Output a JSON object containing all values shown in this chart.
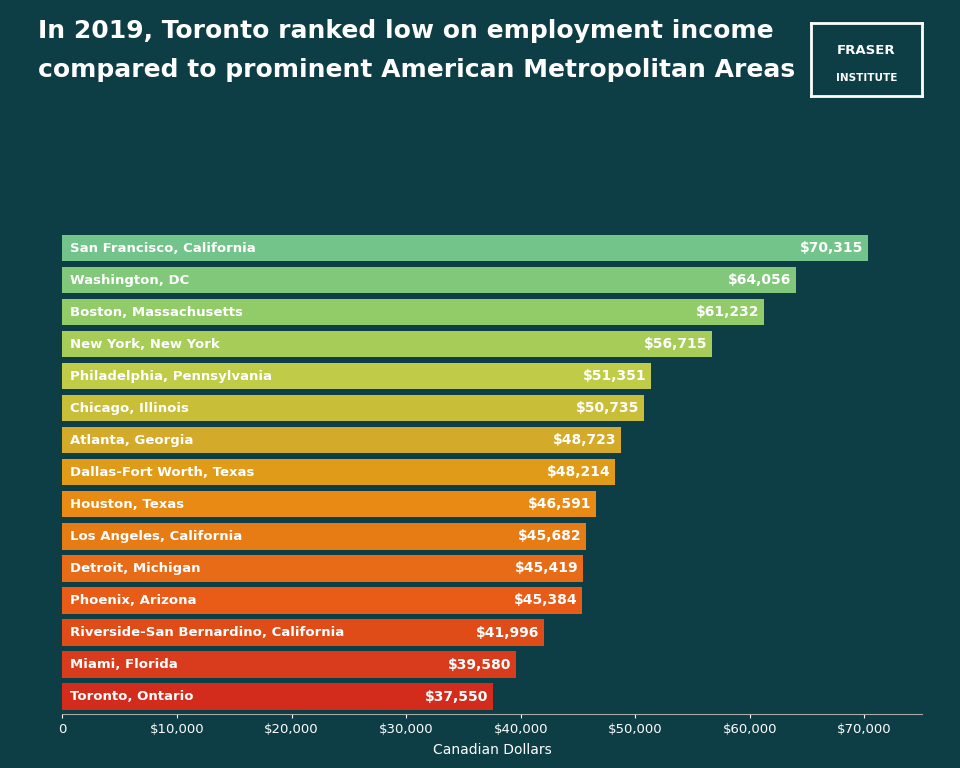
{
  "title_line1": "In 2019, Toronto ranked low on employment income",
  "title_line2": "compared to prominent American Metropolitan Areas",
  "xlabel": "Canadian Dollars",
  "background_color": "#0d3d45",
  "plot_bg_color": "#0d3d45",
  "categories": [
    "San Francisco, California",
    "Washington, DC",
    "Boston, Massachusetts",
    "New York, New York",
    "Philadelphia, Pennsylvania",
    "Chicago, Illinois",
    "Atlanta, Georgia",
    "Dallas-Fort Worth, Texas",
    "Houston, Texas",
    "Los Angeles, California",
    "Detroit, Michigan",
    "Phoenix, Arizona",
    "Riverside-San Bernardino, California",
    "Miami, Florida",
    "Toronto, Ontario"
  ],
  "values": [
    70315,
    64056,
    61232,
    56715,
    51351,
    50735,
    48723,
    48214,
    46591,
    45682,
    45419,
    45384,
    41996,
    39580,
    37550
  ],
  "bar_colors": [
    "#72c48a",
    "#82c87a",
    "#92cc68",
    "#a8cc58",
    "#c0cc48",
    "#c8be38",
    "#d4aa2a",
    "#e09c18",
    "#e88a14",
    "#e87c14",
    "#e86c18",
    "#e85c18",
    "#e04c18",
    "#d83c1c",
    "#d42c1c"
  ],
  "value_labels": [
    "$70,315",
    "$64,056",
    "$61,232",
    "$56,715",
    "$51,351",
    "$50,735",
    "$48,723",
    "$48,214",
    "$46,591",
    "$45,682",
    "$45,419",
    "$45,384",
    "$41,996",
    "$39,580",
    "$37,550"
  ],
  "xlim": [
    0,
    75000
  ],
  "xticks": [
    0,
    10000,
    20000,
    30000,
    40000,
    50000,
    60000,
    70000
  ],
  "xtick_labels": [
    "0",
    "$10,000",
    "$20,000",
    "$30,000",
    "$40,000",
    "$50,000",
    "$60,000",
    "$70,000"
  ],
  "title_fontsize": 18,
  "bar_label_fontsize": 10,
  "tick_label_fontsize": 9.5,
  "axis_label_fontsize": 10,
  "bar_height": 0.82
}
